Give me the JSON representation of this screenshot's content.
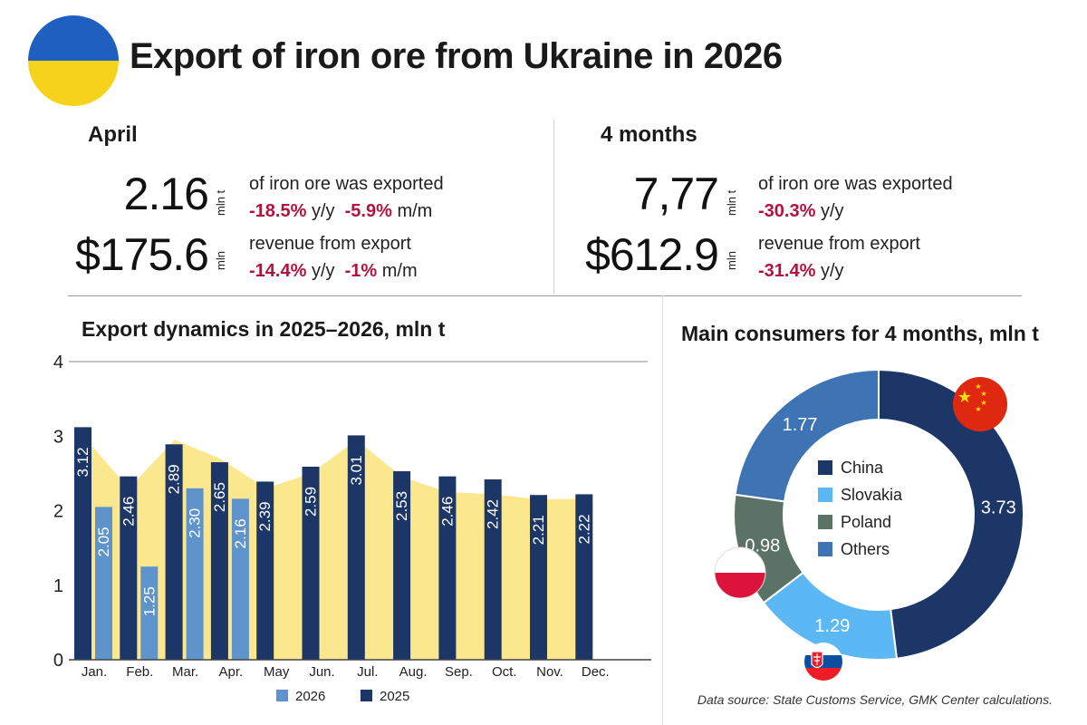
{
  "header": {
    "title": "Export of iron ore from Ukraine in 2026"
  },
  "april": {
    "label": "April",
    "volume": {
      "value": "2.16",
      "unit": "mln t",
      "desc": "of iron ore was exported",
      "yy": "-18.5%",
      "yy_suffix": "y/y",
      "mm": "-5.9%",
      "mm_suffix": "m/m"
    },
    "revenue": {
      "value": "$175.6",
      "unit": "mln",
      "desc": "revenue from export",
      "yy": "-14.4%",
      "yy_suffix": "y/y",
      "mm": "-1%",
      "mm_suffix": "m/m"
    }
  },
  "four_months": {
    "label": "4 months",
    "volume": {
      "value": "7,77",
      "unit": "mln t",
      "desc": "of iron ore was exported",
      "yy": "-30.3%",
      "yy_suffix": "y/y"
    },
    "revenue": {
      "value": "$612.9",
      "unit": "mln",
      "desc": "revenue from export",
      "yy": "-31.4%",
      "yy_suffix": "y/y"
    }
  },
  "chart_data": [
    {
      "type": "bar",
      "title": "Export dynamics in 2025–2026, mln t",
      "categories": [
        "Jan.",
        "Feb.",
        "Mar.",
        "Apr.",
        "May",
        "Jun.",
        "Jul.",
        "Aug.",
        "Sep.",
        "Oct.",
        "Nov.",
        "Dec."
      ],
      "series": [
        {
          "name": "2025",
          "values": [
            3.12,
            2.46,
            2.89,
            2.65,
            2.39,
            2.59,
            3.01,
            2.53,
            2.46,
            2.42,
            2.21,
            2.22
          ],
          "color": "#1b3667"
        },
        {
          "name": "2026",
          "values": [
            2.05,
            1.25,
            2.3,
            2.16,
            null,
            null,
            null,
            null,
            null,
            null,
            null,
            null
          ],
          "color": "#5f93cc"
        }
      ],
      "background_area": {
        "values": [
          3.0,
          2.3,
          2.95,
          2.7,
          2.3,
          2.5,
          2.95,
          2.45,
          2.25,
          2.22,
          2.15,
          2.16
        ],
        "color": "#fbe88e"
      },
      "y_ticks": [
        "0",
        "1",
        "2",
        "3",
        "4"
      ],
      "ylim": [
        0,
        4
      ],
      "grid": false,
      "legend_position": "bottom"
    },
    {
      "type": "pie",
      "title": "Main consumers for 4 months, mln t",
      "labels": [
        "China",
        "Slovakia",
        "Poland",
        "Others"
      ],
      "values": [
        3.73,
        1.29,
        0.98,
        1.77
      ],
      "value_labels": [
        "3.73",
        "1.29",
        "0.98",
        "1.77"
      ],
      "colors": [
        "#1b3667",
        "#5bb8f5",
        "#5a7366",
        "#3f74b4"
      ],
      "legend_position": "center"
    }
  ],
  "source": "Data source: State Customs Service, GMK Center calculations."
}
